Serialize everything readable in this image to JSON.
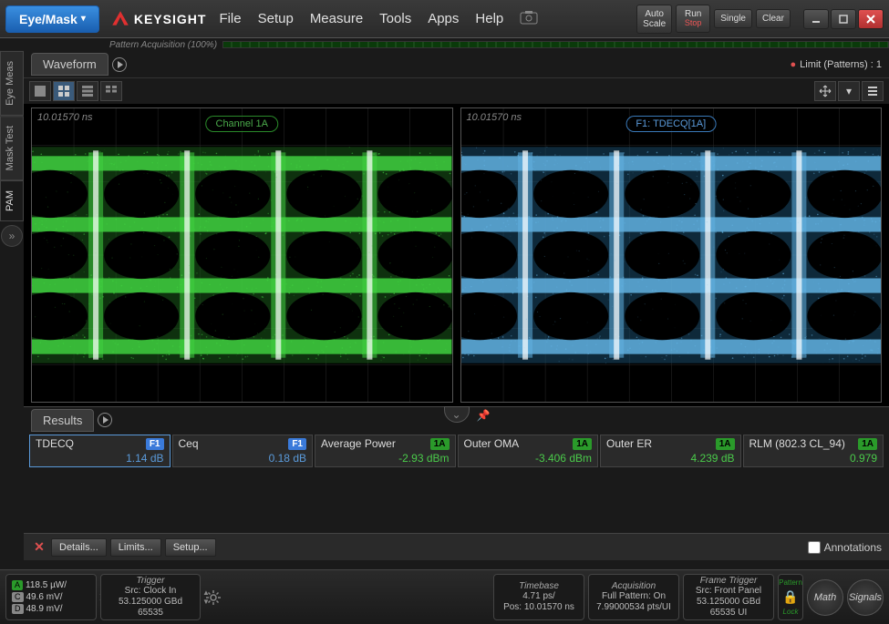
{
  "titlebar": {
    "mode_button": "Eye/Mask",
    "brand": "KEYSIGHT",
    "menu": [
      "File",
      "Setup",
      "Measure",
      "Tools",
      "Apps",
      "Help"
    ],
    "controls": {
      "auto_scale_l1": "Auto",
      "auto_scale_l2": "Scale",
      "run_l1": "Run",
      "run_l2": "Stop",
      "single": "Single",
      "clear": "Clear"
    }
  },
  "pattern_bar": {
    "label": "Pattern Acquisition   (100%)"
  },
  "side_tabs": {
    "t0": "Eye Meas",
    "t1": "Mask Test",
    "t2": "PAM"
  },
  "wave_header": {
    "title": "Waveform",
    "limit": "Limit (Patterns) : 1"
  },
  "panels": {
    "left": {
      "time": "10.01570 ns",
      "badge": "Channel 1A",
      "eye_color": "#40d040",
      "dim_color": "#1a5a1a"
    },
    "right": {
      "time": "10.01570 ns",
      "badge": "F1: TDECQ[1A]",
      "eye_color": "#60b0e0",
      "dim_color": "#1a4a6a"
    }
  },
  "results": {
    "title": "Results",
    "cells": [
      {
        "name": "TDECQ",
        "badge": "F1",
        "badge_cls": "badge-f1",
        "value": "1.14 dB",
        "val_cls": "val-blue",
        "sel": true
      },
      {
        "name": "Ceq",
        "badge": "F1",
        "badge_cls": "badge-f1",
        "value": "0.18 dB",
        "val_cls": "val-blue",
        "sel": false
      },
      {
        "name": "Average Power",
        "badge": "1A",
        "badge_cls": "badge-1a",
        "value": "-2.93 dBm",
        "val_cls": "val-green",
        "sel": false
      },
      {
        "name": "Outer OMA",
        "badge": "1A",
        "badge_cls": "badge-1a",
        "value": "-3.406 dBm",
        "val_cls": "val-green",
        "sel": false
      },
      {
        "name": "Outer ER",
        "badge": "1A",
        "badge_cls": "badge-1a",
        "value": "4.239 dB",
        "val_cls": "val-green",
        "sel": false
      },
      {
        "name": "RLM (802.3 CL_94)",
        "badge": "1A",
        "badge_cls": "badge-1a",
        "value": "0.979",
        "val_cls": "val-green",
        "sel": false
      }
    ],
    "footer": {
      "details": "Details...",
      "limits": "Limits...",
      "setup": "Setup...",
      "annotations": "Annotations"
    }
  },
  "statusbar": {
    "sensitivity": {
      "a": "118.5 µW/",
      "c": "49.6 mV/",
      "d": "48.9 mV/"
    },
    "trigger": {
      "title": "Trigger",
      "l1": "Src: Clock In",
      "l2": "53.125000 GBd",
      "l3": "65535"
    },
    "timebase": {
      "title": "Timebase",
      "l1": "4.71 ps/",
      "l2": "Pos: 10.01570 ns"
    },
    "acquisition": {
      "title": "Acquisition",
      "l1": "Full Pattern: On",
      "l2": "7.99000534 pts/UI"
    },
    "frame_trigger": {
      "title": "Frame Trigger",
      "l1": "Src: Front Panel",
      "l2": "53.125000 GBd",
      "l3": "65535 UI"
    },
    "lock": {
      "pattern": "Pattern",
      "label": "Lock"
    },
    "math": "Math",
    "signals": "Signals"
  }
}
